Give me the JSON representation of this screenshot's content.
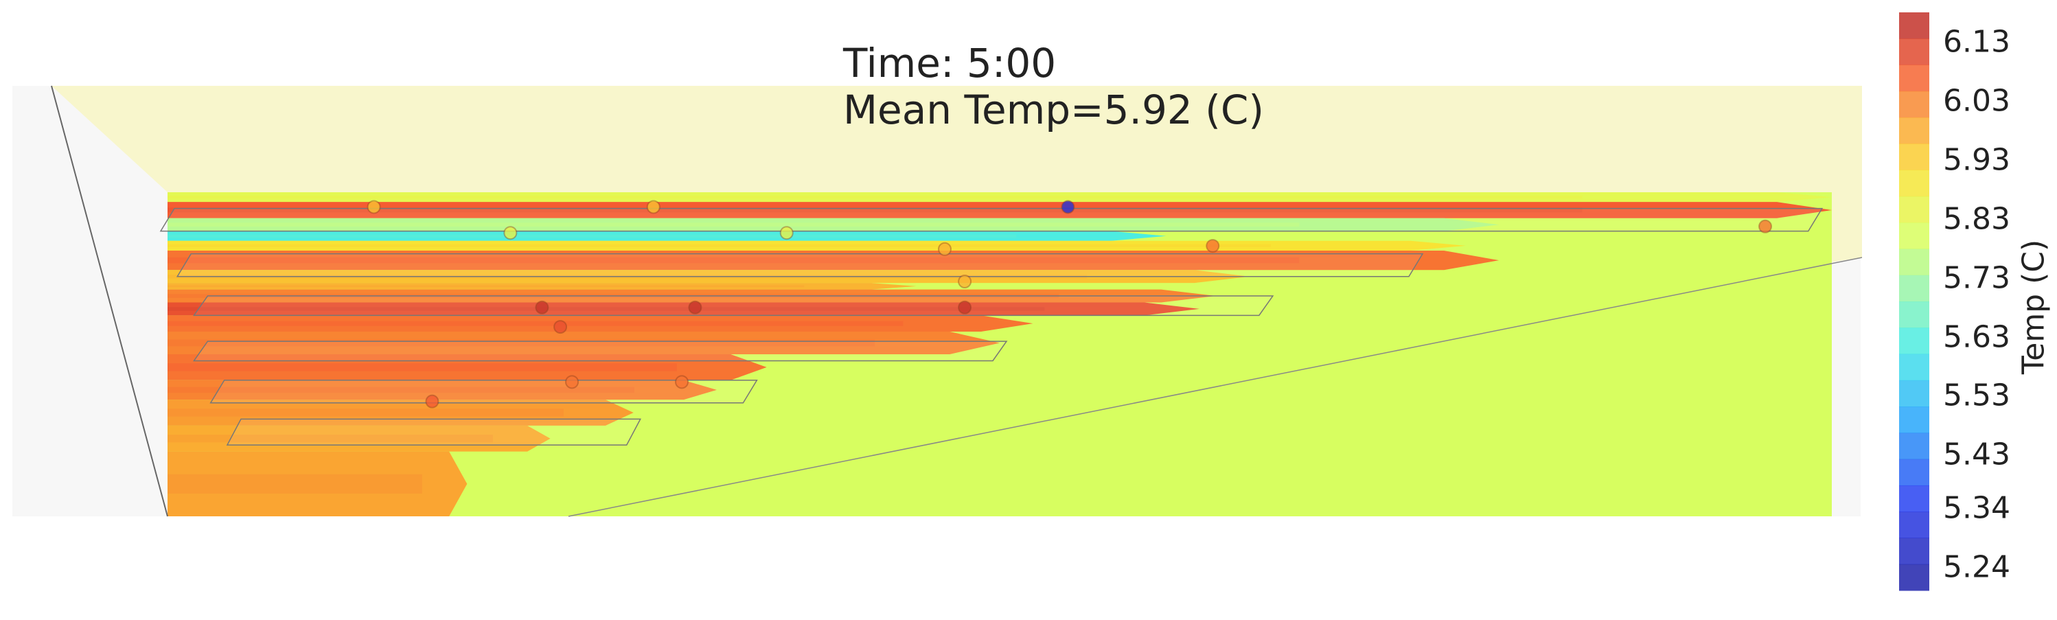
{
  "title": {
    "time": "Time: 5:00",
    "mean": "Mean Temp=5.92 (C)"
  },
  "colors": {
    "background_panel": "#f8f6cc",
    "floor_default": "#dbff66",
    "stripe_warm": "#e8312a",
    "stripe_dark_red": "#c51d1d",
    "stripe_cool_blue": "#1f2fdd",
    "stripe_cyan": "#5ef0dc",
    "stripe_yellow": "#fbe93a"
  },
  "chart_data": {
    "type": "heatmap",
    "title": "Time: 5:00",
    "subtitle": "Mean Temp=5.92 (C)",
    "colorbar": {
      "label": "Temp (C)",
      "ticks": [
        6.13,
        6.03,
        5.93,
        5.83,
        5.73,
        5.63,
        5.53,
        5.43,
        5.34,
        5.24
      ],
      "tick_labels": [
        "6.13",
        "6.03",
        "5.93",
        "5.83",
        "5.73",
        "5.63",
        "5.53",
        "5.43",
        "5.34",
        "5.24"
      ],
      "range": [
        5.2,
        6.18
      ],
      "colormap": "jet",
      "levels": 22
    },
    "sensors": [
      {
        "x": 0.124,
        "y": 0.02,
        "temp": 5.95
      },
      {
        "x": 0.292,
        "y": 0.02,
        "temp": 5.95
      },
      {
        "x": 0.541,
        "y": 0.02,
        "temp": 5.3
      },
      {
        "x": 0.206,
        "y": 0.1,
        "temp": 5.85
      },
      {
        "x": 0.372,
        "y": 0.1,
        "temp": 5.85
      },
      {
        "x": 0.467,
        "y": 0.15,
        "temp": 5.97
      },
      {
        "x": 0.628,
        "y": 0.14,
        "temp": 6.05
      },
      {
        "x": 0.96,
        "y": 0.08,
        "temp": 6.05
      },
      {
        "x": 0.479,
        "y": 0.25,
        "temp": 5.97
      },
      {
        "x": 0.225,
        "y": 0.33,
        "temp": 6.15
      },
      {
        "x": 0.317,
        "y": 0.33,
        "temp": 6.15
      },
      {
        "x": 0.479,
        "y": 0.33,
        "temp": 6.15
      },
      {
        "x": 0.236,
        "y": 0.39,
        "temp": 6.1
      },
      {
        "x": 0.243,
        "y": 0.56,
        "temp": 6.05
      },
      {
        "x": 0.309,
        "y": 0.56,
        "temp": 6.05
      },
      {
        "x": 0.159,
        "y": 0.62,
        "temp": 6.08
      }
    ],
    "stripes": [
      {
        "y0": 0.0,
        "y1": 0.03,
        "temp": 5.83,
        "extent": 1.0
      },
      {
        "y0": 0.03,
        "y1": 0.08,
        "temp": 6.08,
        "extent": 1.0
      },
      {
        "y0": 0.08,
        "y1": 0.12,
        "temp": 5.75,
        "extent": 0.8
      },
      {
        "y0": 0.12,
        "y1": 0.15,
        "temp": 5.62,
        "extent": 0.6
      },
      {
        "y0": 0.15,
        "y1": 0.18,
        "temp": 5.9,
        "extent": 0.78
      },
      {
        "y0": 0.18,
        "y1": 0.24,
        "temp": 6.05,
        "extent": 0.8
      },
      {
        "y0": 0.24,
        "y1": 0.28,
        "temp": 5.95,
        "extent": 0.65
      },
      {
        "y0": 0.28,
        "y1": 0.3,
        "temp": 5.97,
        "extent": 0.45
      },
      {
        "y0": 0.3,
        "y1": 0.34,
        "temp": 6.03,
        "extent": 0.63
      },
      {
        "y0": 0.34,
        "y1": 0.38,
        "temp": 6.1,
        "extent": 0.62
      },
      {
        "y0": 0.38,
        "y1": 0.43,
        "temp": 6.05,
        "extent": 0.52
      },
      {
        "y0": 0.43,
        "y1": 0.5,
        "temp": 6.03,
        "extent": 0.5
      },
      {
        "y0": 0.5,
        "y1": 0.58,
        "temp": 6.05,
        "extent": 0.36
      },
      {
        "y0": 0.58,
        "y1": 0.64,
        "temp": 6.03,
        "extent": 0.33
      },
      {
        "y0": 0.64,
        "y1": 0.72,
        "temp": 6.0,
        "extent": 0.28
      },
      {
        "y0": 0.72,
        "y1": 0.8,
        "temp": 5.98,
        "extent": 0.23
      },
      {
        "y0": 0.8,
        "y1": 1.0,
        "temp": 5.99,
        "extent": 0.18
      }
    ],
    "background_temp": 5.8
  }
}
